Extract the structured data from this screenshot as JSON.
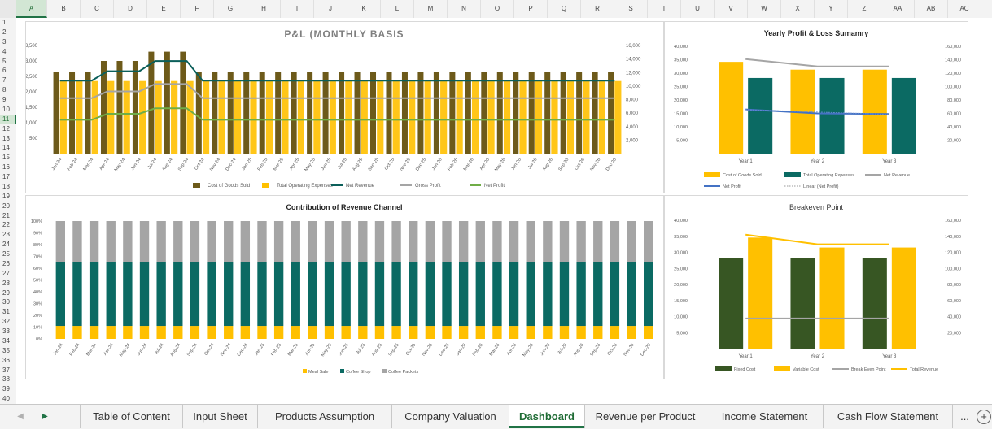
{
  "columns": [
    "A",
    "B",
    "C",
    "D",
    "E",
    "F",
    "G",
    "H",
    "I",
    "J",
    "K",
    "L",
    "M",
    "N",
    "O",
    "P",
    "Q",
    "R",
    "S",
    "T",
    "U",
    "V",
    "W",
    "X",
    "Y",
    "Z",
    "AA",
    "AB",
    "AC"
  ],
  "selected_column": "A",
  "rows": [
    "1",
    "2",
    "3",
    "4",
    "5",
    "6",
    "7",
    "8",
    "9",
    "10",
    "11",
    "12",
    "13",
    "14",
    "15",
    "16",
    "17",
    "18",
    "19",
    "20",
    "21",
    "22",
    "23",
    "24",
    "25",
    "26",
    "27",
    "28",
    "29",
    "30",
    "31",
    "32",
    "33",
    "34",
    "35",
    "36",
    "37",
    "38",
    "39",
    "40"
  ],
  "selected_row": "11",
  "months": [
    "Jan-24",
    "Feb-24",
    "Mar-24",
    "Apr-24",
    "May-24",
    "Jun-24",
    "Jul-24",
    "Aug-24",
    "Sep-24",
    "Oct-24",
    "Nov-24",
    "Dec-24",
    "Jan-25",
    "Feb-25",
    "Mar-25",
    "Apr-25",
    "May-25",
    "Jun-25",
    "Jul-25",
    "Aug-25",
    "Sep-25",
    "Oct-25",
    "Nov-25",
    "Dec-25",
    "Jan-26",
    "Feb-26",
    "Mar-26",
    "Apr-26",
    "May-26",
    "Jun-26",
    "Jul-26",
    "Aug-26",
    "Sep-26",
    "Oct-26",
    "Nov-26",
    "Dec-26"
  ],
  "colors": {
    "cogs": "#6d5a1a",
    "opex": "#ffc000",
    "net_revenue": "#0b5f5a",
    "gross_profit": "#a5a5a5",
    "net_profit": "#70ad47",
    "teal": "#0b6a63",
    "gold": "#ffc000",
    "gray": "#a5a5a5",
    "blue": "#4472c4",
    "dark_green": "#375623",
    "accent": "#217346"
  },
  "chart_data": [
    {
      "type": "bar",
      "title": "P&L (MONTHLY BASIS",
      "y_left_ticks": [
        "-",
        "500",
        "1,000",
        "1,500",
        "2,000",
        "2,500",
        "3,000",
        "3,500"
      ],
      "y_right_ticks": [
        "-",
        "2,000",
        "4,000",
        "6,000",
        "8,000",
        "10,000",
        "12,000",
        "14,000",
        "16,000"
      ],
      "ylim_left": [
        0,
        3500
      ],
      "ylim_right": [
        0,
        16000
      ],
      "series": [
        {
          "name": "Cost of Goods Sold",
          "axis": "left",
          "kind": "bar",
          "values": [
            2650,
            2650,
            2650,
            3000,
            3000,
            3000,
            3300,
            3300,
            3300,
            2650,
            2650,
            2650,
            2650,
            2650,
            2650,
            2650,
            2650,
            2650,
            2650,
            2650,
            2650,
            2650,
            2650,
            2650,
            2650,
            2650,
            2650,
            2650,
            2650,
            2650,
            2650,
            2650,
            2650,
            2650,
            2650,
            2650
          ]
        },
        {
          "name": "Total Operating Expenses",
          "axis": "left",
          "kind": "bar",
          "values": [
            2350,
            2350,
            2350,
            2350,
            2350,
            2350,
            2350,
            2350,
            2350,
            2350,
            2350,
            2350,
            2350,
            2350,
            2350,
            2350,
            2350,
            2350,
            2350,
            2350,
            2350,
            2350,
            2350,
            2350,
            2350,
            2350,
            2350,
            2350,
            2350,
            2350,
            2350,
            2350,
            2350,
            2350,
            2350,
            2350
          ]
        },
        {
          "name": "Net Revenue",
          "axis": "right",
          "kind": "line",
          "values": [
            10800,
            10800,
            10800,
            12200,
            12200,
            12200,
            13700,
            13700,
            13700,
            10800,
            10800,
            10800,
            10800,
            10800,
            10800,
            10800,
            10800,
            10800,
            10800,
            10800,
            10800,
            10800,
            10800,
            10800,
            10800,
            10800,
            10800,
            10800,
            10800,
            10800,
            10800,
            10800,
            10800,
            10800,
            10800,
            10800
          ]
        },
        {
          "name": "Gross Profit",
          "axis": "right",
          "kind": "line",
          "values": [
            8200,
            8200,
            8200,
            9200,
            9200,
            9200,
            10300,
            10300,
            10300,
            8200,
            8200,
            8200,
            8200,
            8200,
            8200,
            8200,
            8200,
            8200,
            8200,
            8200,
            8200,
            8200,
            8200,
            8200,
            8200,
            8200,
            8200,
            8200,
            8200,
            8200,
            8200,
            8200,
            8200,
            8200,
            8200,
            8200
          ]
        },
        {
          "name": "Net Profit",
          "axis": "right",
          "kind": "line",
          "values": [
            5000,
            5000,
            5000,
            5900,
            5900,
            5900,
            6700,
            6700,
            6700,
            5000,
            5000,
            5000,
            5000,
            5000,
            5000,
            5000,
            5000,
            5000,
            5000,
            5000,
            5000,
            5000,
            5000,
            5000,
            5000,
            5000,
            5000,
            5000,
            5000,
            5000,
            5000,
            5000,
            5000,
            5000,
            5000,
            5000
          ]
        }
      ]
    },
    {
      "type": "bar",
      "title": "Yearly Profit & Loss Sumamry",
      "categories": [
        "Year 1",
        "Year 2",
        "Year 3"
      ],
      "y_left_ticks": [
        "-",
        "5,000",
        "10,000",
        "15,000",
        "20,000",
        "25,000",
        "30,000",
        "35,000",
        "40,000"
      ],
      "y_right_ticks": [
        "-",
        "20,000",
        "40,000",
        "60,000",
        "80,000",
        "100,000",
        "120,000",
        "140,000",
        "160,000"
      ],
      "ylim_left": [
        0,
        40000
      ],
      "ylim_right": [
        0,
        160000
      ],
      "series": [
        {
          "name": "Cost of Goods Sold",
          "axis": "left",
          "kind": "bar",
          "values": [
            34200,
            31300,
            31300
          ]
        },
        {
          "name": "Total Operating Expenses",
          "axis": "left",
          "kind": "bar",
          "values": [
            28200,
            28200,
            28200
          ]
        },
        {
          "name": "Net Revenue",
          "axis": "right",
          "kind": "line",
          "values": [
            141000,
            130000,
            130000
          ]
        },
        {
          "name": "Net Profit",
          "axis": "right",
          "kind": "line",
          "values": [
            66000,
            60000,
            59000
          ]
        },
        {
          "name": "Linear (Net Profit)",
          "axis": "right",
          "kind": "trend",
          "values": [
            65500,
            62000,
            58500
          ]
        }
      ]
    },
    {
      "type": "bar",
      "stacked": true,
      "title": "Contribution of Revenue Channel",
      "y_ticks": [
        "0%",
        "10%",
        "20%",
        "30%",
        "40%",
        "50%",
        "60%",
        "70%",
        "80%",
        "90%",
        "100%"
      ],
      "ylim": [
        0,
        100
      ],
      "series": [
        {
          "name": "Meal Sale",
          "share": 11
        },
        {
          "name": "Coffee Shop",
          "share": 54
        },
        {
          "name": "Coffee Packets",
          "share": 35
        }
      ]
    },
    {
      "type": "bar",
      "title": "Breakeven Point",
      "categories": [
        "Year 1",
        "Year 2",
        "Year 3"
      ],
      "y_left_ticks": [
        "-",
        "5,000",
        "10,000",
        "15,000",
        "20,000",
        "25,000",
        "30,000",
        "35,000",
        "40,000"
      ],
      "y_right_ticks": [
        "-",
        "20,000",
        "40,000",
        "60,000",
        "80,000",
        "100,000",
        "120,000",
        "140,000",
        "160,000"
      ],
      "ylim_left": [
        0,
        40000
      ],
      "ylim_right": [
        0,
        160000
      ],
      "series": [
        {
          "name": "Fixed Cost",
          "axis": "left",
          "kind": "bar",
          "values": [
            28200,
            28200,
            28200
          ]
        },
        {
          "name": "Variable Cost",
          "axis": "left",
          "kind": "bar",
          "values": [
            34600,
            31500,
            31500
          ]
        },
        {
          "name": "Break Even Point",
          "axis": "left",
          "kind": "line",
          "values": [
            9400,
            9400,
            9400
          ]
        },
        {
          "name": "Total Revenue",
          "axis": "right",
          "kind": "line",
          "values": [
            142000,
            130000,
            130000
          ]
        }
      ]
    }
  ],
  "tabs": [
    {
      "label": "Table of Content",
      "active": false
    },
    {
      "label": "Input Sheet",
      "active": false
    },
    {
      "label": "Products Assumption",
      "active": false
    },
    {
      "label": "Company Valuation",
      "active": false
    },
    {
      "label": "Dashboard",
      "active": true
    },
    {
      "label": "Revenue per Product",
      "active": false
    },
    {
      "label": "Income Statement",
      "active": false
    },
    {
      "label": "Cash Flow Statement",
      "active": false
    }
  ],
  "tab_more": "..."
}
